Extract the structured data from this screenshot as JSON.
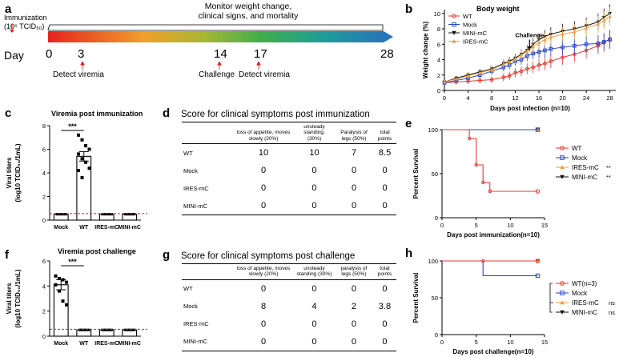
{
  "panel_labels": {
    "a": "a",
    "b": "b",
    "c": "c",
    "d": "d",
    "e": "e",
    "f": "f",
    "g": "g",
    "h": "h"
  },
  "timeline": {
    "immunization_line1": "Immunization",
    "immunization_line2": "(10⁵ TCID₅₀)",
    "monitor_line1": "Monitor weight change,",
    "monitor_line2": "clinical signs, and mortality",
    "day_label": "Day",
    "days": [
      "0",
      "3",
      "14",
      "17",
      "28"
    ],
    "events": {
      "d3": "Detect viremia",
      "d14": "Challenge",
      "d17": "Detect viremia"
    }
  },
  "colors": {
    "wt": "#e8372f",
    "mock": "#2a46c9",
    "ires": "#f0a040",
    "mini": "#111111",
    "ref": "#e02020"
  },
  "chart_data": [
    {
      "id": "b",
      "type": "line",
      "title": "Body weight",
      "xlabel": "Days post infection (n=10)",
      "ylabel": "Weight change (%)",
      "xlim": [
        0,
        29
      ],
      "ylim": [
        0,
        10.5
      ],
      "xticks": [
        0,
        4,
        8,
        12,
        16,
        20,
        24,
        28
      ],
      "yticks": [
        0,
        2,
        4,
        6,
        8,
        10
      ],
      "annotation": "Challenge",
      "annotation_x": 14,
      "series": [
        {
          "name": "WT",
          "x": [
            0,
            2,
            4,
            6,
            8,
            10,
            11,
            12,
            13,
            14,
            15,
            16,
            17,
            18,
            20,
            22,
            24,
            26,
            27,
            28
          ],
          "y": [
            1.0,
            1.1,
            1.2,
            1.3,
            1.4,
            1.7,
            1.9,
            2.3,
            2.5,
            2.8,
            3.0,
            3.3,
            3.5,
            3.8,
            4.3,
            4.7,
            5.2,
            5.8,
            6.2,
            6.7
          ]
        },
        {
          "name": "Mock",
          "x": [
            0,
            2,
            4,
            6,
            8,
            10,
            11,
            12,
            13,
            14,
            15,
            16,
            17,
            18,
            20,
            22,
            24,
            26,
            27,
            28
          ],
          "y": [
            1.0,
            1.3,
            1.6,
            2.0,
            2.5,
            3.0,
            3.3,
            3.8,
            4.0,
            4.5,
            4.8,
            5.0,
            5.2,
            5.4,
            5.6,
            5.8,
            6.0,
            6.1,
            6.3,
            6.6
          ]
        },
        {
          "name": "MINI-mC",
          "x": [
            0,
            2,
            4,
            6,
            8,
            10,
            11,
            12,
            13,
            14,
            15,
            16,
            17,
            18,
            20,
            22,
            24,
            26,
            27,
            28
          ],
          "y": [
            1.1,
            1.6,
            2.0,
            2.4,
            2.8,
            3.5,
            3.8,
            4.2,
            4.7,
            5.2,
            6.0,
            6.6,
            7.0,
            7.3,
            7.7,
            8.0,
            8.4,
            8.9,
            9.5,
            10.0
          ]
        },
        {
          "name": "IRES-mC",
          "x": [
            0,
            2,
            4,
            6,
            8,
            10,
            11,
            12,
            13,
            14,
            15,
            16,
            17,
            18,
            20,
            22,
            24,
            26,
            27,
            28
          ],
          "y": [
            1.1,
            1.5,
            1.9,
            2.3,
            2.7,
            3.4,
            3.7,
            4.1,
            4.6,
            5.1,
            5.7,
            6.2,
            6.6,
            6.9,
            7.3,
            7.6,
            8.1,
            8.6,
            9.1,
            9.6
          ]
        }
      ]
    },
    {
      "id": "c",
      "type": "bar",
      "title": "Viremia post immunization",
      "ylabel_line1": "Viral titers",
      "ylabel_line2": "(log10 TCID₅₀/1mL)",
      "categories": [
        "Mock",
        "WT",
        "IRES-mC",
        "MINI-mC"
      ],
      "values": [
        0.5,
        5.4,
        0.5,
        0.5
      ],
      "ylim": [
        0,
        8
      ],
      "yticks": [
        0,
        2,
        4,
        6,
        8
      ],
      "detection_limit": 0.55,
      "significance": "***",
      "points": [
        7.2,
        6.8,
        6.3,
        6.0,
        5.6,
        5.2,
        4.9,
        4.4,
        4.2,
        3.6
      ]
    },
    {
      "id": "f",
      "type": "bar",
      "title": "Viremia post challenge",
      "ylabel_line1": "Viral titers",
      "ylabel_line2": "(log10 TCID₅₀/1mL)",
      "categories": [
        "Mock",
        "WT",
        "IRES-mC",
        "MINI-mC"
      ],
      "values": [
        4.1,
        0.5,
        0.5,
        0.5
      ],
      "ylim": [
        0,
        6
      ],
      "yticks": [
        0,
        2,
        4,
        6
      ],
      "detection_limit": 0.55,
      "significance": "***",
      "points": [
        4.8,
        4.6,
        4.5,
        4.3,
        4.1,
        3.6,
        2.8,
        2.5
      ]
    },
    {
      "id": "e",
      "type": "line",
      "title": "",
      "xlabel": "Days post immunization(n=10)",
      "ylabel": "Percent Survival",
      "xlim": [
        0,
        15
      ],
      "ylim": [
        0,
        100
      ],
      "xticks": [
        0,
        5,
        10,
        15
      ],
      "yticks": [
        0,
        50,
        100
      ],
      "series": [
        {
          "name": "WT",
          "x": [
            0,
            4,
            4,
            5,
            5,
            6,
            6,
            7,
            7,
            14
          ],
          "y": [
            100,
            100,
            90,
            90,
            60,
            60,
            40,
            40,
            30,
            30
          ],
          "sig": ""
        },
        {
          "name": "Mock",
          "x": [
            0,
            14
          ],
          "y": [
            100,
            100
          ],
          "sig": ""
        },
        {
          "name": "IRES-mC",
          "x": [
            0,
            14
          ],
          "y": [
            100,
            100
          ],
          "sig": "**"
        },
        {
          "name": "MINI-mC",
          "x": [
            0,
            14
          ],
          "y": [
            100,
            100
          ],
          "sig": "**"
        }
      ]
    },
    {
      "id": "h",
      "type": "line",
      "title": "",
      "xlabel": "Days post challenge(n=10)",
      "ylabel": "Percent Survival",
      "xlim": [
        0,
        15
      ],
      "ylim": [
        0,
        100
      ],
      "xticks": [
        0,
        5,
        10,
        15
      ],
      "yticks": [
        0,
        50,
        100
      ],
      "series": [
        {
          "name": "WT(n=3)",
          "x": [
            0,
            6,
            6,
            14
          ],
          "y": [
            100,
            100,
            100,
            100
          ],
          "sig": ""
        },
        {
          "name": "Mock",
          "x": [
            0,
            6,
            6,
            14
          ],
          "y": [
            100,
            100,
            80,
            80
          ],
          "sig": ""
        },
        {
          "name": "IRES-mC",
          "x": [
            0,
            14
          ],
          "y": [
            100,
            100
          ],
          "sig": "ns"
        },
        {
          "name": "MINI-mC",
          "x": [
            0,
            14
          ],
          "y": [
            100,
            100
          ],
          "sig": "ns"
        }
      ]
    }
  ],
  "table_d": {
    "title": "Score for clinical symptoms post immunization",
    "headers": [
      "loss of appetite, moves slowly (20%)",
      "unsteady standing, (30%)",
      "Paralysis of legs (50%)",
      "total points"
    ],
    "rows": [
      {
        "label": "WT",
        "values": [
          "10",
          "10",
          "7",
          "8.5"
        ]
      },
      {
        "label": "Mock",
        "values": [
          "0",
          "0",
          "0",
          "0"
        ]
      },
      {
        "label": "IRES-mC",
        "values": [
          "0",
          "0",
          "0",
          "0"
        ]
      },
      {
        "label": "MINI-mC",
        "values": [
          "0",
          "0",
          "0",
          "0"
        ]
      }
    ]
  },
  "table_g": {
    "title": "Score for clinical symptoms post challenge",
    "headers": [
      "loss of appetite, moves slowly (20%)",
      "unsteady standing (30%)",
      "paralysis of legs (50%)",
      "total points"
    ],
    "rows": [
      {
        "label": "WT",
        "values": [
          "0",
          "0",
          "0",
          "0"
        ]
      },
      {
        "label": "Mock",
        "values": [
          "8",
          "4",
          "2",
          "3.8"
        ]
      },
      {
        "label": "IRES-mC",
        "values": [
          "0",
          "0",
          "0",
          "0"
        ]
      },
      {
        "label": "MINI-mC",
        "values": [
          "0",
          "0",
          "0",
          "0"
        ]
      }
    ]
  }
}
